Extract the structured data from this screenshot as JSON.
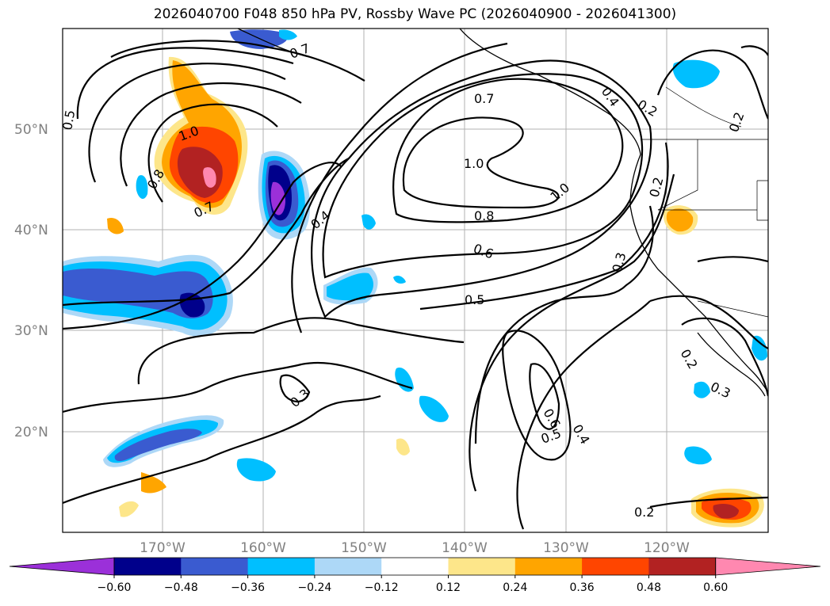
{
  "title": "2026040700 F048 850 hPa PV, Rossby Wave PC (2026040900 - 2026041300)",
  "lat_labels": [
    "50°N",
    "40°N",
    "30°N",
    "20°N"
  ],
  "lon_labels": [
    "170°W",
    "160°W",
    "150°W",
    "140°W",
    "130°W",
    "120°W"
  ],
  "colorbar": {
    "ticks": [
      "−0.60",
      "−0.48",
      "−0.36",
      "−0.24",
      "−0.12",
      "0.12",
      "0.24",
      "0.36",
      "0.48",
      "0.60"
    ],
    "colors": [
      "#9b30d9",
      "#00008b",
      "#3a5bd0",
      "#00bfff",
      "#add8f7",
      "#ffffff",
      "#fde68a",
      "#ffa500",
      "#ff4500",
      "#b22222",
      "#ff88b0"
    ]
  },
  "contour_labels": [
    "0.5",
    "0.7",
    "0.7",
    "0.4",
    "0.2",
    "1.0",
    "1.0",
    "1.0",
    "0.8",
    "0.8",
    "0.7",
    "0.4",
    "0.6",
    "0.5",
    "0.3",
    "0.2",
    "0.2",
    "0.3",
    "0.6",
    "0.5",
    "0.4",
    "0.3",
    "0.2",
    "0.2"
  ]
}
